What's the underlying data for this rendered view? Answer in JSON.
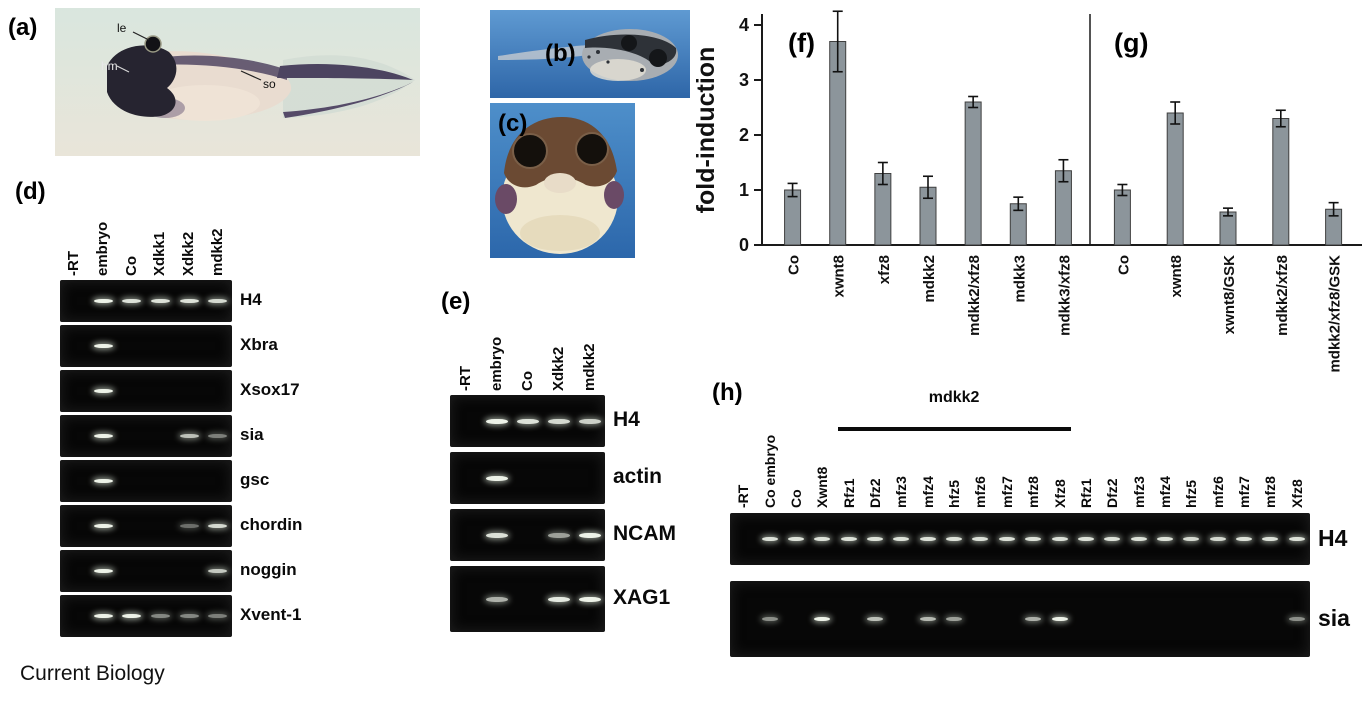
{
  "figure_credit": "Current Biology",
  "panel_a": {
    "label": "(a)",
    "annotations": {
      "le": "le",
      "hm": "hm",
      "so": "so"
    }
  },
  "panel_b": {
    "label": "(b)"
  },
  "panel_c": {
    "label": "(c)"
  },
  "panel_d": {
    "label": "(d)",
    "lanes": [
      "-RT",
      "embryo",
      "Co",
      "Xdkk1",
      "Xdkk2",
      "mdkk2"
    ],
    "rows": [
      {
        "gene": "H4",
        "bands": [
          0,
          1,
          0.9,
          0.9,
          0.9,
          0.85
        ]
      },
      {
        "gene": "Xbra",
        "bands": [
          0,
          1,
          0,
          0,
          0,
          0
        ]
      },
      {
        "gene": "Xsox17",
        "bands": [
          0,
          1,
          0,
          0,
          0,
          0
        ]
      },
      {
        "gene": "sia",
        "bands": [
          0,
          1,
          0,
          0,
          0.7,
          0.3
        ]
      },
      {
        "gene": "gsc",
        "bands": [
          0,
          1,
          0,
          0,
          0,
          0
        ]
      },
      {
        "gene": "chordin",
        "bands": [
          0,
          1,
          0,
          0,
          0.2,
          0.85
        ]
      },
      {
        "gene": "noggin",
        "bands": [
          0,
          1,
          0,
          0,
          0,
          0.75
        ]
      },
      {
        "gene": "Xvent-1",
        "bands": [
          0,
          1,
          1,
          0.35,
          0.35,
          0.3
        ]
      }
    ]
  },
  "panel_e": {
    "label": "(e)",
    "lanes": [
      "-RT",
      "embryo",
      "Co",
      "Xdkk2",
      "mdkk2"
    ],
    "rows": [
      {
        "gene": "H4",
        "bands": [
          0,
          1,
          0.9,
          0.85,
          0.8
        ]
      },
      {
        "gene": "actin",
        "bands": [
          0,
          1,
          0,
          0,
          0
        ]
      },
      {
        "gene": "NCAM",
        "bands": [
          0,
          0.9,
          0,
          0.5,
          1
        ]
      },
      {
        "gene": "XAG1",
        "bands": [
          0,
          0.6,
          0,
          0.95,
          1
        ]
      }
    ]
  },
  "panel_h": {
    "label": "(h)",
    "group_label": "mdkk2",
    "group_span": [
      4,
      12
    ],
    "lanes": [
      "-RT",
      "Co embryo",
      "Co",
      "Xwnt8",
      "Rfz1",
      "Dfz2",
      "mfz3",
      "mfz4",
      "hfz5",
      "mfz6",
      "mfz7",
      "mfz8",
      "Xfz8",
      "Rfz1",
      "Dfz2",
      "mfz3",
      "mfz4",
      "hfz5",
      "mfz6",
      "mfz7",
      "mfz8",
      "Xfz8"
    ],
    "rows": [
      {
        "gene": "H4",
        "bands": [
          0,
          0.9,
          0.9,
          0.9,
          0.9,
          0.9,
          0.9,
          0.9,
          0.9,
          0.9,
          0.9,
          0.9,
          0.9,
          0.9,
          0.9,
          0.9,
          0.9,
          0.85,
          0.85,
          0.9,
          0.9,
          0.9
        ]
      },
      {
        "gene": "sia",
        "bands": [
          0,
          0.4,
          0,
          1,
          0,
          0.7,
          0,
          0.65,
          0.5,
          0,
          0,
          0.6,
          1,
          0,
          0,
          0,
          0,
          0,
          0,
          0,
          0,
          0.4
        ]
      }
    ]
  },
  "chart_data": [
    {
      "type": "bar",
      "panel": "(f)",
      "title": "",
      "ylabel": "fold-induction",
      "ylim": [
        0,
        4
      ],
      "yticks": [
        0,
        1,
        2,
        3,
        4
      ],
      "categories": [
        "Co",
        "xwnt8",
        "xfz8",
        "mdkk2",
        "mdkk2/xfz8",
        "mdkk3",
        "mdkk3/xfz8"
      ],
      "values": [
        1.0,
        3.7,
        1.3,
        1.05,
        2.6,
        0.75,
        1.35
      ],
      "errors": [
        0.12,
        0.55,
        0.2,
        0.2,
        0.1,
        0.12,
        0.2
      ],
      "bar_color": "#8c959b",
      "grid": false,
      "legend": "none"
    },
    {
      "type": "bar",
      "panel": "(g)",
      "title": "",
      "ylabel": "fold-induction",
      "ylim": [
        0,
        4
      ],
      "yticks": [
        0,
        1,
        2,
        3,
        4
      ],
      "categories": [
        "Co",
        "xwnt8",
        "xwnt8/GSK",
        "mdkk2/xfz8",
        "mdkk2/xfz8/GSK"
      ],
      "values": [
        1.0,
        2.4,
        0.6,
        2.3,
        0.65
      ],
      "errors": [
        0.1,
        0.2,
        0.07,
        0.15,
        0.12
      ],
      "bar_color": "#8c959b",
      "grid": false,
      "legend": "none"
    }
  ]
}
